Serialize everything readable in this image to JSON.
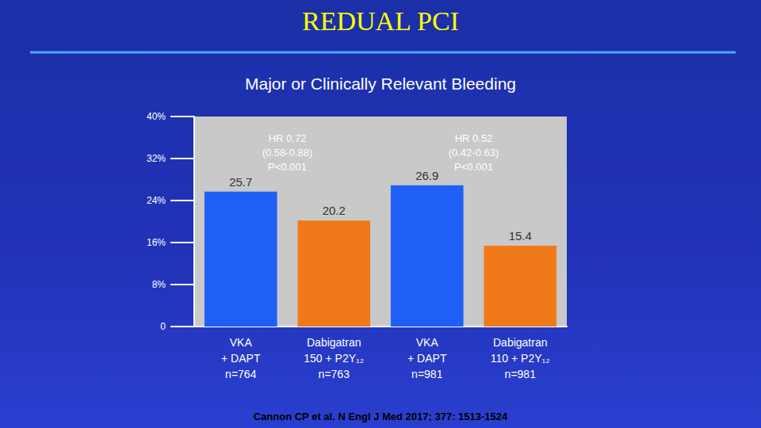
{
  "chart_data": {
    "type": "bar",
    "title": "REDUAL PCI",
    "subtitle": "Major or Clinically Relevant Bleeding",
    "source": "Cannon CP et al. N Engl J Med 2017; 377: 1513-1524",
    "categories": [
      "VKA\n+ DAPT\nn=764",
      "Dabigatran\n150 + P2Y₁₂\nn=763",
      "VKA\n+ DAPT\nn=981",
      "Dabigatran\n110 + P2Y₁₂\nn=981"
    ],
    "values": [
      25.7,
      20.2,
      26.9,
      15.4
    ],
    "colors": [
      "#1f5ff5",
      "#f07a1a",
      "#1f5ff5",
      "#f07a1a"
    ],
    "annotations": [
      [
        "HR 0.72",
        "(0.58-0.88)",
        "P<0.001"
      ],
      [
        "HR 0.52",
        "(0.42-0.63)",
        "P<0.001"
      ]
    ],
    "ylim": [
      0,
      40
    ],
    "yticks": [
      0,
      {
        "value": 8,
        "label": "8%"
      },
      {
        "value": 16,
        "label": "16%"
      },
      {
        "value": 24,
        "label": "24%"
      },
      {
        "value": 32,
        "label": "32%"
      },
      {
        "value": 40,
        "label": "40%"
      }
    ],
    "grid": false,
    "data_labels": true
  }
}
